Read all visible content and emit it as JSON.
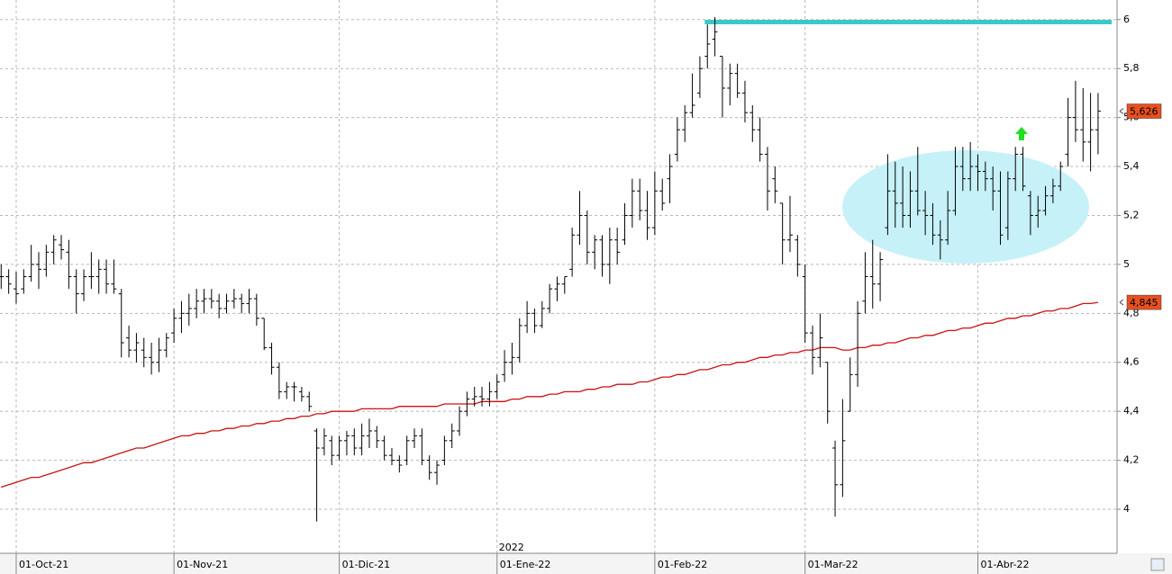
{
  "chart_data": {
    "type": "ohlc",
    "categories": [
      null,
      null,
      "01-Oct-21",
      null,
      null,
      null,
      null,
      null,
      null,
      null,
      null,
      null,
      null,
      null,
      null,
      null,
      null,
      null,
      null,
      null,
      null,
      null,
      null,
      "01-Nov-21",
      null,
      null,
      null,
      null,
      null,
      null,
      null,
      null,
      null,
      null,
      null,
      null,
      null,
      null,
      null,
      null,
      null,
      null,
      null,
      null,
      null,
      "01-Dic-21",
      null,
      null,
      null,
      null,
      null,
      null,
      null,
      null,
      null,
      null,
      null,
      null,
      null,
      null,
      null,
      null,
      null,
      null,
      null,
      null,
      "01-Ene-22",
      null,
      null,
      null,
      null,
      null,
      null,
      null,
      null,
      null,
      null,
      null,
      null,
      null,
      null,
      null,
      null,
      null,
      null,
      null,
      null,
      "01-Feb-22",
      null,
      null,
      null,
      null,
      null,
      null,
      null,
      null,
      null,
      null,
      null,
      null,
      null,
      null,
      null,
      null,
      null,
      null,
      null,
      "01-Mar-22",
      null,
      null,
      null,
      null,
      null,
      null,
      null,
      null,
      null,
      null,
      null,
      null,
      null,
      null,
      null,
      null,
      null,
      null,
      null,
      null,
      null,
      null,
      "01-Abr-22",
      null,
      null,
      null,
      null,
      null,
      null,
      null,
      null,
      null,
      null,
      null,
      null,
      null,
      null,
      null,
      null
    ],
    "year_label": {
      "index": 66,
      "text": "2022"
    },
    "price": {
      "color": "#000000",
      "last_label": "5,626",
      "label_color": "#e8501e",
      "ohlc": [
        [
          4.95,
          5.0,
          4.9,
          4.95
        ],
        [
          4.95,
          4.98,
          4.88,
          4.92
        ],
        [
          4.9,
          4.97,
          4.84,
          4.88
        ],
        [
          4.9,
          4.98,
          4.88,
          4.95
        ],
        [
          4.95,
          5.08,
          4.93,
          5.0
        ],
        [
          5.0,
          5.05,
          4.9,
          4.98
        ],
        [
          4.98,
          5.08,
          4.95,
          5.05
        ],
        [
          5.05,
          5.12,
          5.0,
          5.1
        ],
        [
          5.08,
          5.12,
          5.02,
          5.06
        ],
        [
          5.05,
          5.1,
          4.9,
          4.95
        ],
        [
          4.95,
          4.98,
          4.8,
          4.88
        ],
        [
          4.88,
          4.98,
          4.85,
          4.95
        ],
        [
          4.95,
          5.05,
          4.9,
          4.95
        ],
        [
          4.95,
          5.02,
          4.88,
          4.98
        ],
        [
          4.98,
          5.02,
          4.88,
          4.92
        ],
        [
          4.92,
          5.02,
          4.88,
          4.9
        ],
        [
          4.88,
          4.9,
          4.62,
          4.68
        ],
        [
          4.7,
          4.75,
          4.62,
          4.65
        ],
        [
          4.65,
          4.72,
          4.6,
          4.68
        ],
        [
          4.65,
          4.7,
          4.58,
          4.62
        ],
        [
          4.62,
          4.68,
          4.55,
          4.6
        ],
        [
          4.6,
          4.7,
          4.56,
          4.65
        ],
        [
          4.65,
          4.72,
          4.62,
          4.7
        ],
        [
          4.72,
          4.82,
          4.68,
          4.78
        ],
        [
          4.78,
          4.85,
          4.72,
          4.8
        ],
        [
          4.8,
          4.88,
          4.75,
          4.82
        ],
        [
          4.82,
          4.9,
          4.78,
          4.85
        ],
        [
          4.85,
          4.9,
          4.8,
          4.86
        ],
        [
          4.86,
          4.9,
          4.82,
          4.85
        ],
        [
          4.85,
          4.88,
          4.78,
          4.82
        ],
        [
          4.82,
          4.88,
          4.8,
          4.85
        ],
        [
          4.85,
          4.9,
          4.82,
          4.86
        ],
        [
          4.86,
          4.88,
          4.8,
          4.84
        ],
        [
          4.84,
          4.9,
          4.8,
          4.86
        ],
        [
          4.86,
          4.88,
          4.75,
          4.78
        ],
        [
          4.78,
          4.78,
          4.65,
          4.66
        ],
        [
          4.66,
          4.68,
          4.55,
          4.58
        ],
        [
          4.58,
          4.6,
          4.45,
          4.48
        ],
        [
          4.48,
          4.52,
          4.45,
          4.5
        ],
        [
          4.5,
          4.52,
          4.44,
          4.5
        ],
        [
          4.48,
          4.5,
          4.44,
          4.46
        ],
        [
          4.46,
          4.48,
          4.4,
          4.42
        ],
        [
          4.32,
          4.33,
          3.95,
          4.25
        ],
        [
          4.25,
          4.33,
          4.22,
          4.3
        ],
        [
          4.28,
          4.3,
          4.18,
          4.22
        ],
        [
          4.22,
          4.3,
          4.2,
          4.28
        ],
        [
          4.28,
          4.32,
          4.22,
          4.3
        ],
        [
          4.3,
          4.33,
          4.22,
          4.25
        ],
        [
          4.25,
          4.35,
          4.22,
          4.3
        ],
        [
          4.3,
          4.37,
          4.25,
          4.32
        ],
        [
          4.32,
          4.34,
          4.25,
          4.28
        ],
        [
          4.28,
          4.3,
          4.2,
          4.22
        ],
        [
          4.22,
          4.25,
          4.18,
          4.2
        ],
        [
          4.2,
          4.22,
          4.15,
          4.18
        ],
        [
          4.2,
          4.3,
          4.18,
          4.28
        ],
        [
          4.28,
          4.33,
          4.25,
          4.3
        ],
        [
          4.3,
          4.33,
          4.18,
          4.2
        ],
        [
          4.2,
          4.22,
          4.12,
          4.15
        ],
        [
          4.15,
          4.2,
          4.1,
          4.18
        ],
        [
          4.2,
          4.3,
          4.18,
          4.28
        ],
        [
          4.28,
          4.35,
          4.25,
          4.32
        ],
        [
          4.32,
          4.42,
          4.3,
          4.4
        ],
        [
          4.4,
          4.48,
          4.38,
          4.45
        ],
        [
          4.45,
          4.5,
          4.42,
          4.46
        ],
        [
          4.46,
          4.5,
          4.42,
          4.45
        ],
        [
          4.45,
          4.52,
          4.42,
          4.48
        ],
        [
          4.48,
          4.55,
          4.45,
          4.52
        ],
        [
          4.55,
          4.65,
          4.52,
          4.6
        ],
        [
          4.6,
          4.68,
          4.55,
          4.62
        ],
        [
          4.62,
          4.78,
          4.6,
          4.75
        ],
        [
          4.75,
          4.85,
          4.72,
          4.8
        ],
        [
          4.8,
          4.82,
          4.72,
          4.75
        ],
        [
          4.75,
          4.85,
          4.74,
          4.82
        ],
        [
          4.82,
          4.92,
          4.8,
          4.9
        ],
        [
          4.9,
          4.95,
          4.85,
          4.92
        ],
        [
          4.92,
          4.95,
          4.88,
          4.95
        ],
        [
          4.98,
          5.15,
          4.95,
          5.12
        ],
        [
          5.12,
          5.3,
          5.08,
          5.2
        ],
        [
          5.2,
          5.22,
          5.0,
          5.05
        ],
        [
          5.05,
          5.12,
          4.98,
          5.1
        ],
        [
          5.1,
          5.12,
          4.95,
          5.0
        ],
        [
          5.0,
          5.15,
          4.92,
          5.1
        ],
        [
          5.1,
          5.15,
          5.0,
          5.05
        ],
        [
          5.1,
          5.25,
          5.08,
          5.2
        ],
        [
          5.2,
          5.35,
          5.15,
          5.3
        ],
        [
          5.3,
          5.35,
          5.18,
          5.22
        ],
        [
          5.22,
          5.3,
          5.1,
          5.15
        ],
        [
          5.15,
          5.38,
          5.12,
          5.3
        ],
        [
          5.3,
          5.35,
          5.22,
          5.25
        ],
        [
          5.35,
          5.45,
          5.25,
          5.4
        ],
        [
          5.45,
          5.6,
          5.42,
          5.55
        ],
        [
          5.55,
          5.65,
          5.5,
          5.62
        ],
        [
          5.62,
          5.78,
          5.6,
          5.65
        ],
        [
          5.7,
          5.85,
          5.68,
          5.8
        ],
        [
          5.85,
          5.98,
          5.8,
          5.9
        ],
        [
          5.92,
          6.01,
          5.85,
          5.95
        ],
        [
          5.85,
          5.85,
          5.6,
          5.72
        ],
        [
          5.72,
          5.82,
          5.65,
          5.78
        ],
        [
          5.78,
          5.82,
          5.68,
          5.7
        ],
        [
          5.7,
          5.75,
          5.58,
          5.62
        ],
        [
          5.62,
          5.65,
          5.5,
          5.55
        ],
        [
          5.55,
          5.6,
          5.42,
          5.45
        ],
        [
          5.45,
          5.48,
          5.22,
          5.3
        ],
        [
          5.35,
          5.4,
          5.25,
          5.3
        ],
        [
          5.25,
          5.25,
          5.0,
          5.1
        ],
        [
          5.1,
          5.28,
          5.05,
          5.12
        ],
        [
          5.1,
          5.12,
          4.95,
          5.0
        ],
        [
          4.95,
          5.0,
          4.68,
          4.72
        ],
        [
          4.72,
          4.75,
          4.55,
          4.62
        ],
        [
          4.62,
          4.8,
          4.58,
          4.7
        ],
        [
          4.6,
          4.6,
          4.35,
          4.4
        ],
        [
          4.25,
          4.28,
          3.97,
          4.1
        ],
        [
          4.1,
          4.45,
          4.05,
          4.28
        ],
        [
          4.4,
          4.62,
          4.4,
          4.55
        ],
        [
          4.55,
          4.85,
          4.5,
          4.8
        ],
        [
          4.85,
          5.05,
          4.8,
          4.95
        ],
        [
          4.95,
          5.1,
          4.82,
          4.92
        ],
        [
          4.92,
          5.05,
          4.85,
          5.02
        ],
        [
          5.15,
          5.45,
          5.12,
          5.3
        ],
        [
          5.3,
          5.42,
          5.15,
          5.25
        ],
        [
          5.25,
          5.4,
          5.15,
          5.2
        ],
        [
          5.2,
          5.38,
          5.15,
          5.3
        ],
        [
          5.3,
          5.48,
          5.2,
          5.22
        ],
        [
          5.22,
          5.3,
          5.12,
          5.2
        ],
        [
          5.2,
          5.25,
          5.08,
          5.12
        ],
        [
          5.12,
          5.18,
          5.02,
          5.1
        ],
        [
          5.1,
          5.3,
          5.08,
          5.22
        ],
        [
          5.22,
          5.48,
          5.2,
          5.4
        ],
        [
          5.4,
          5.48,
          5.3,
          5.35
        ],
        [
          5.35,
          5.5,
          5.3,
          5.4
        ],
        [
          5.4,
          5.45,
          5.3,
          5.38
        ],
        [
          5.38,
          5.42,
          5.3,
          5.35
        ],
        [
          5.35,
          5.4,
          5.22,
          5.3
        ],
        [
          5.3,
          5.38,
          5.08,
          5.12
        ],
        [
          5.15,
          5.38,
          5.1,
          5.35
        ],
        [
          5.35,
          5.48,
          5.3,
          5.45
        ],
        [
          5.45,
          5.48,
          5.3,
          5.32
        ],
        [
          5.28,
          5.3,
          5.12,
          5.2
        ],
        [
          5.2,
          5.28,
          5.15,
          5.22
        ],
        [
          5.22,
          5.32,
          5.2,
          5.28
        ],
        [
          5.28,
          5.35,
          5.25,
          5.32
        ],
        [
          5.32,
          5.42,
          5.3,
          5.4
        ],
        [
          5.45,
          5.68,
          5.4,
          5.6
        ],
        [
          5.6,
          5.75,
          5.5,
          5.55
        ],
        [
          5.55,
          5.72,
          5.42,
          5.5
        ],
        [
          5.5,
          5.7,
          5.38,
          5.55
        ],
        [
          5.55,
          5.7,
          5.45,
          5.626
        ]
      ]
    },
    "moving_average": {
      "color": "#cc1111",
      "last_label": "4,845",
      "label_color": "#e8501e",
      "values": [
        4.09,
        4.1,
        4.11,
        4.12,
        4.13,
        4.13,
        4.14,
        4.15,
        4.16,
        4.17,
        4.18,
        4.19,
        4.19,
        4.2,
        4.21,
        4.22,
        4.23,
        4.24,
        4.25,
        4.25,
        4.26,
        4.27,
        4.28,
        4.29,
        4.3,
        4.3,
        4.31,
        4.31,
        4.32,
        4.32,
        4.33,
        4.33,
        4.34,
        4.34,
        4.35,
        4.35,
        4.36,
        4.36,
        4.37,
        4.37,
        4.38,
        4.38,
        4.39,
        4.39,
        4.4,
        4.4,
        4.4,
        4.4,
        4.41,
        4.41,
        4.41,
        4.41,
        4.41,
        4.42,
        4.42,
        4.42,
        4.42,
        4.42,
        4.42,
        4.43,
        4.43,
        4.43,
        4.43,
        4.43,
        4.44,
        4.44,
        4.44,
        4.44,
        4.45,
        4.45,
        4.46,
        4.46,
        4.46,
        4.47,
        4.47,
        4.48,
        4.48,
        4.48,
        4.49,
        4.49,
        4.5,
        4.5,
        4.51,
        4.51,
        4.51,
        4.52,
        4.52,
        4.53,
        4.54,
        4.54,
        4.55,
        4.55,
        4.56,
        4.57,
        4.57,
        4.58,
        4.59,
        4.59,
        4.6,
        4.6,
        4.61,
        4.62,
        4.62,
        4.63,
        4.63,
        4.64,
        4.64,
        4.65,
        4.65,
        4.66,
        4.66,
        4.66,
        4.65,
        4.65,
        4.66,
        4.66,
        4.67,
        4.67,
        4.68,
        4.68,
        4.69,
        4.7,
        4.7,
        4.71,
        4.71,
        4.72,
        4.73,
        4.73,
        4.74,
        4.74,
        4.75,
        4.76,
        4.76,
        4.77,
        4.78,
        4.78,
        4.79,
        4.79,
        4.8,
        4.81,
        4.81,
        4.82,
        4.82,
        4.83,
        4.84,
        4.84,
        4.845
      ]
    },
    "resistance": {
      "value": 5.99,
      "color": "#3cc8c8",
      "from_index": 94
    },
    "ylim": [
      3.82,
      6.08
    ],
    "yticks": [
      {
        "value": 4,
        "label": "4"
      },
      {
        "value": 4.2,
        "label": "4,2"
      },
      {
        "value": 4.4,
        "label": "4,4"
      },
      {
        "value": 4.6,
        "label": "4,6"
      },
      {
        "value": 4.8,
        "label": "4,8"
      },
      {
        "value": 5,
        "label": "5"
      },
      {
        "value": 5.2,
        "label": "5,2"
      },
      {
        "value": 5.4,
        "label": "5,4"
      },
      {
        "value": 5.6,
        "label": "5,6"
      },
      {
        "value": 5.8,
        "label": "5,8"
      },
      {
        "value": 6,
        "label": "6"
      }
    ],
    "grid": true
  }
}
